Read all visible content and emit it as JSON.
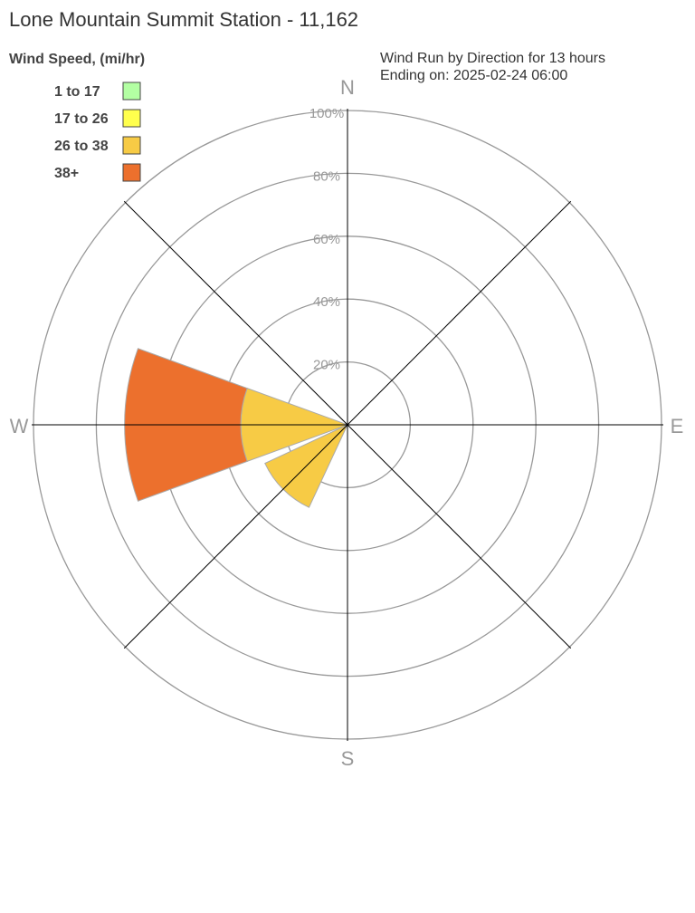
{
  "chart_data": {
    "type": "wind-rose",
    "title": "Lone Mountain Summit Station - 11,162",
    "subtitle_lines": [
      "Wind Run by Direction for 13 hours",
      "Ending on: 2025-02-24 06:00"
    ],
    "legend_title": "Wind Speed, (mi/hr)",
    "legend_placement": "top-left",
    "bins": [
      {
        "label": "1 to 17",
        "color": "#b3ffa3"
      },
      {
        "label": "17 to 26",
        "color": "#ffff4d"
      },
      {
        "label": "26 to 38",
        "color": "#f7cb45"
      },
      {
        "label": "38+",
        "color": "#ec702d"
      }
    ],
    "directions": [
      "N",
      "NE",
      "E",
      "SE",
      "S",
      "SW",
      "W",
      "NW"
    ],
    "compass_labels": {
      "N": "N",
      "E": "E",
      "S": "S",
      "W": "W"
    },
    "radial_ticks": [
      "20%",
      "40%",
      "60%",
      "80%",
      "100%"
    ],
    "radial_range": [
      0,
      100
    ],
    "values_percent": {
      "W": [
        0,
        0,
        34,
        37
      ],
      "SW": [
        0,
        0,
        29,
        0
      ]
    }
  }
}
